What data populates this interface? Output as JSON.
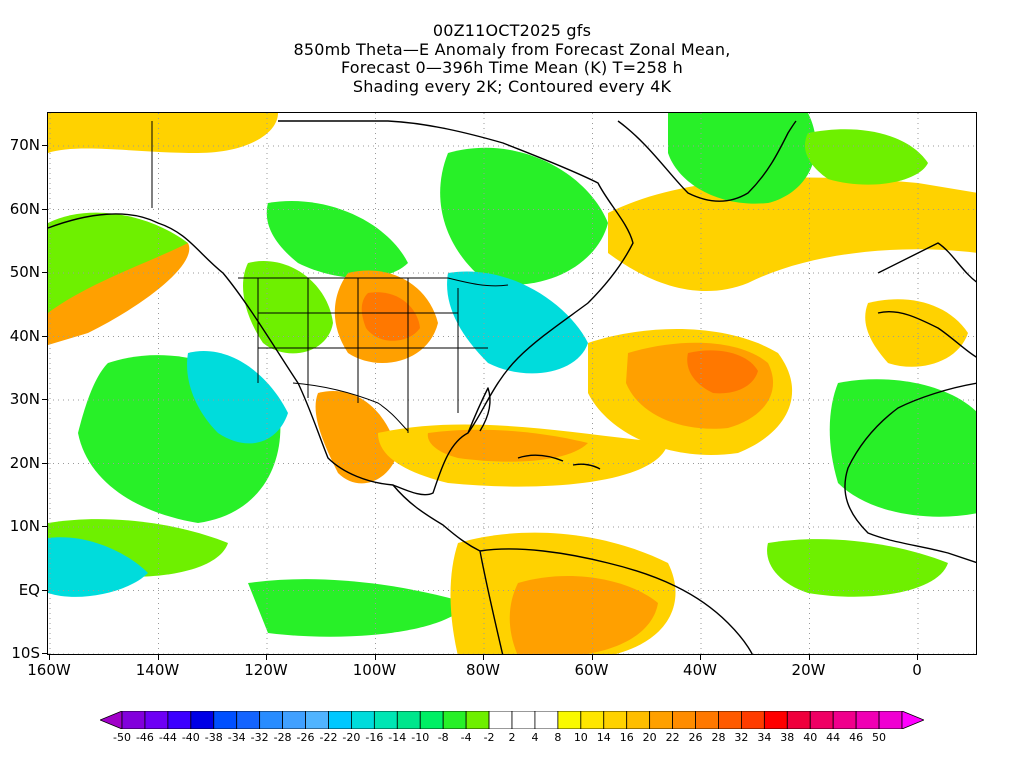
{
  "title": {
    "line1": "00Z11OCT2025 gfs",
    "line2": "850mb Theta—E Anomaly from Forecast Zonal Mean,",
    "line3": "Forecast 0—396h Time Mean (K) T=258 h",
    "line4": "Shading every 2K; Contoured every 4K"
  },
  "axes": {
    "lat_labels": [
      "70N",
      "60N",
      "50N",
      "40N",
      "30N",
      "20N",
      "10N",
      "EQ",
      "10S"
    ],
    "lon_labels": [
      "160W",
      "140W",
      "120W",
      "100W",
      "80W",
      "60W",
      "40W",
      "20W",
      "0"
    ]
  },
  "colorbar": {
    "labels": [
      "-50",
      "-46",
      "-44",
      "-40",
      "-38",
      "-34",
      "-32",
      "-28",
      "-26",
      "-22",
      "-20",
      "-16",
      "-14",
      "-10",
      "-8",
      "-4",
      "-2",
      "2",
      "4",
      "8",
      "10",
      "14",
      "16",
      "20",
      "22",
      "26",
      "28",
      "32",
      "34",
      "38",
      "40",
      "44",
      "46",
      "50"
    ],
    "colors": [
      "#a000c8",
      "#8200dc",
      "#6e00f5",
      "#3c00ff",
      "#0000e6",
      "#0050ff",
      "#1464ff",
      "#288cff",
      "#40a0ff",
      "#50b4ff",
      "#00c8ff",
      "#00dcdc",
      "#00e6b4",
      "#00e68c",
      "#00f064",
      "#28f028",
      "#6ef000",
      "#ffffff",
      "#ffffff",
      "#ffffff",
      "#fafa00",
      "#ffe600",
      "#ffd200",
      "#ffbe00",
      "#ffa000",
      "#ff8c00",
      "#ff7800",
      "#ff5a00",
      "#ff3c00",
      "#ff0000",
      "#f0003c",
      "#f00064",
      "#f0008c",
      "#f000b4",
      "#f000d2",
      "#ff00ff"
    ]
  },
  "colors": {
    "land_outline": "#000000",
    "grid": "#9a9a9a",
    "warm_light": "#fafa00",
    "warm_mid": "#ffd200",
    "warm_strong": "#ffa000",
    "warm_peak": "#ff7800",
    "cool_light": "#6ef000",
    "cool_mid": "#28f028",
    "cool_deep": "#00e68c",
    "cold": "#00dcdc"
  }
}
